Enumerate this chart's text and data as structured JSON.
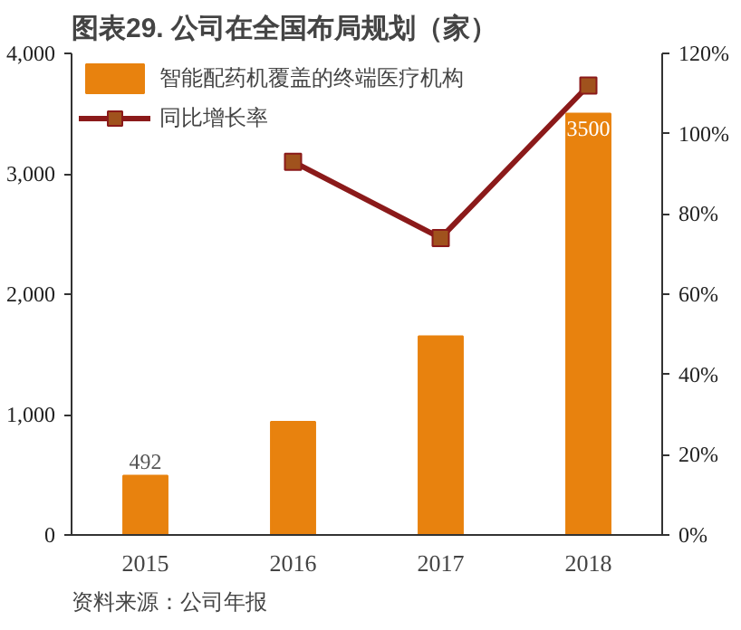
{
  "chart_data": {
    "type": "bar",
    "title": "图表29.  公司在全国布局规划（家）",
    "categories": [
      "2015",
      "2016",
      "2017",
      "2018"
    ],
    "series": [
      {
        "name": "智能配药机覆盖的终端医疗机构",
        "color": "#e8820e",
        "values": [
          492,
          940,
          1650,
          3500
        ],
        "value_labels": [
          "492",
          null,
          null,
          "3500"
        ]
      },
      {
        "name": "同比增长率",
        "type": "line",
        "axis": "y2",
        "color": "#8b1a1a",
        "marker": "square",
        "values": [
          null,
          93,
          74,
          112
        ]
      }
    ],
    "ylim": [
      0,
      4000
    ],
    "yticks": [
      {
        "value": 0,
        "label": "0"
      },
      {
        "value": 1000,
        "label": "1,000"
      },
      {
        "value": 2000,
        "label": "2,000"
      },
      {
        "value": 3000,
        "label": "3,000"
      },
      {
        "value": 4000,
        "label": "4,000"
      }
    ],
    "y2lim": [
      0,
      120
    ],
    "y2ticks": [
      {
        "value": 0,
        "label": "0%"
      },
      {
        "value": 20,
        "label": "20%"
      },
      {
        "value": 40,
        "label": "40%"
      },
      {
        "value": 60,
        "label": "60%"
      },
      {
        "value": 80,
        "label": "80%"
      },
      {
        "value": 100,
        "label": "100%"
      },
      {
        "value": 120,
        "label": "120%"
      }
    ],
    "grid": false,
    "legend": "top left",
    "annotations": [
      "资料来源：公司年报"
    ]
  }
}
